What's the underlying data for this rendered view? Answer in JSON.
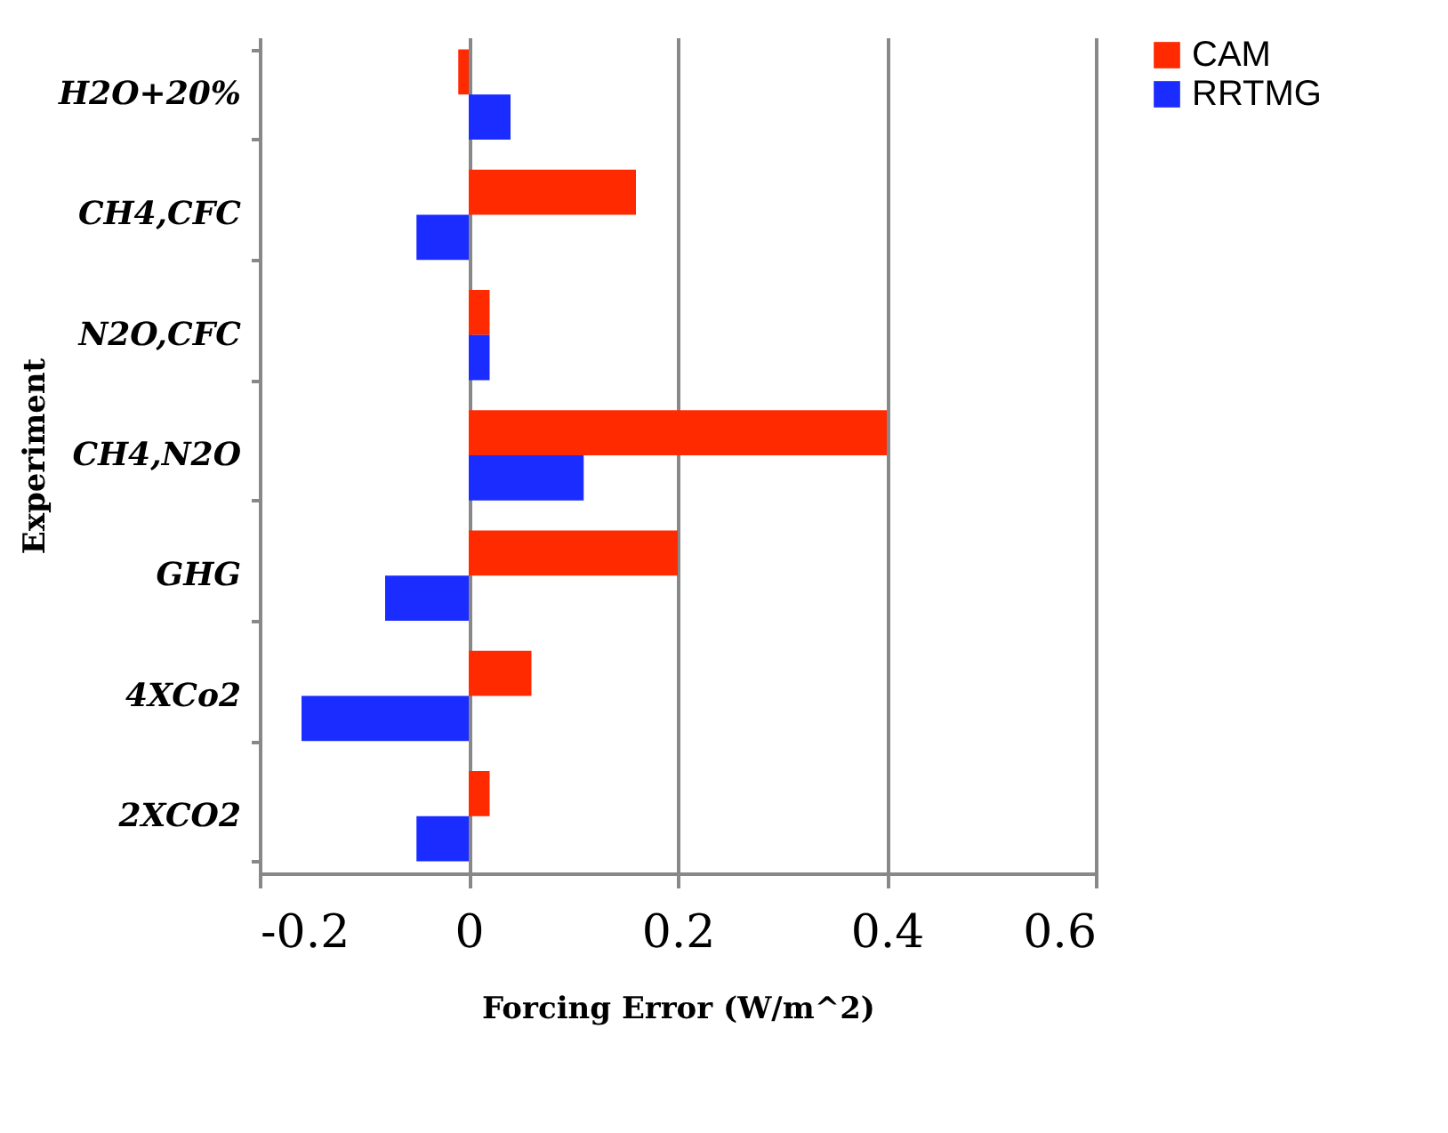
{
  "chart_data": {
    "type": "bar",
    "orientation": "horizontal",
    "xlabel": "Forcing Error (W/m^2)",
    "ylabel": "Experiment",
    "categories": [
      "H2O+20%",
      "CH4,CFC",
      "N2O,CFC",
      "CH4,N2O",
      "GHG",
      "4XCo2",
      "2XCO2"
    ],
    "series": [
      {
        "name": "CAM",
        "color": "#ff2a00",
        "values": [
          -0.01,
          0.16,
          0.02,
          0.4,
          0.2,
          0.06,
          0.02
        ]
      },
      {
        "name": "RRTMG",
        "color": "#1a2cff",
        "values": [
          0.04,
          -0.05,
          0.02,
          0.11,
          -0.08,
          -0.16,
          -0.05
        ]
      }
    ],
    "xlim": [
      -0.2,
      0.6
    ],
    "xticks": [
      -0.2,
      0,
      0.2,
      0.4,
      0.6
    ],
    "grid": "x",
    "legend": "right"
  }
}
